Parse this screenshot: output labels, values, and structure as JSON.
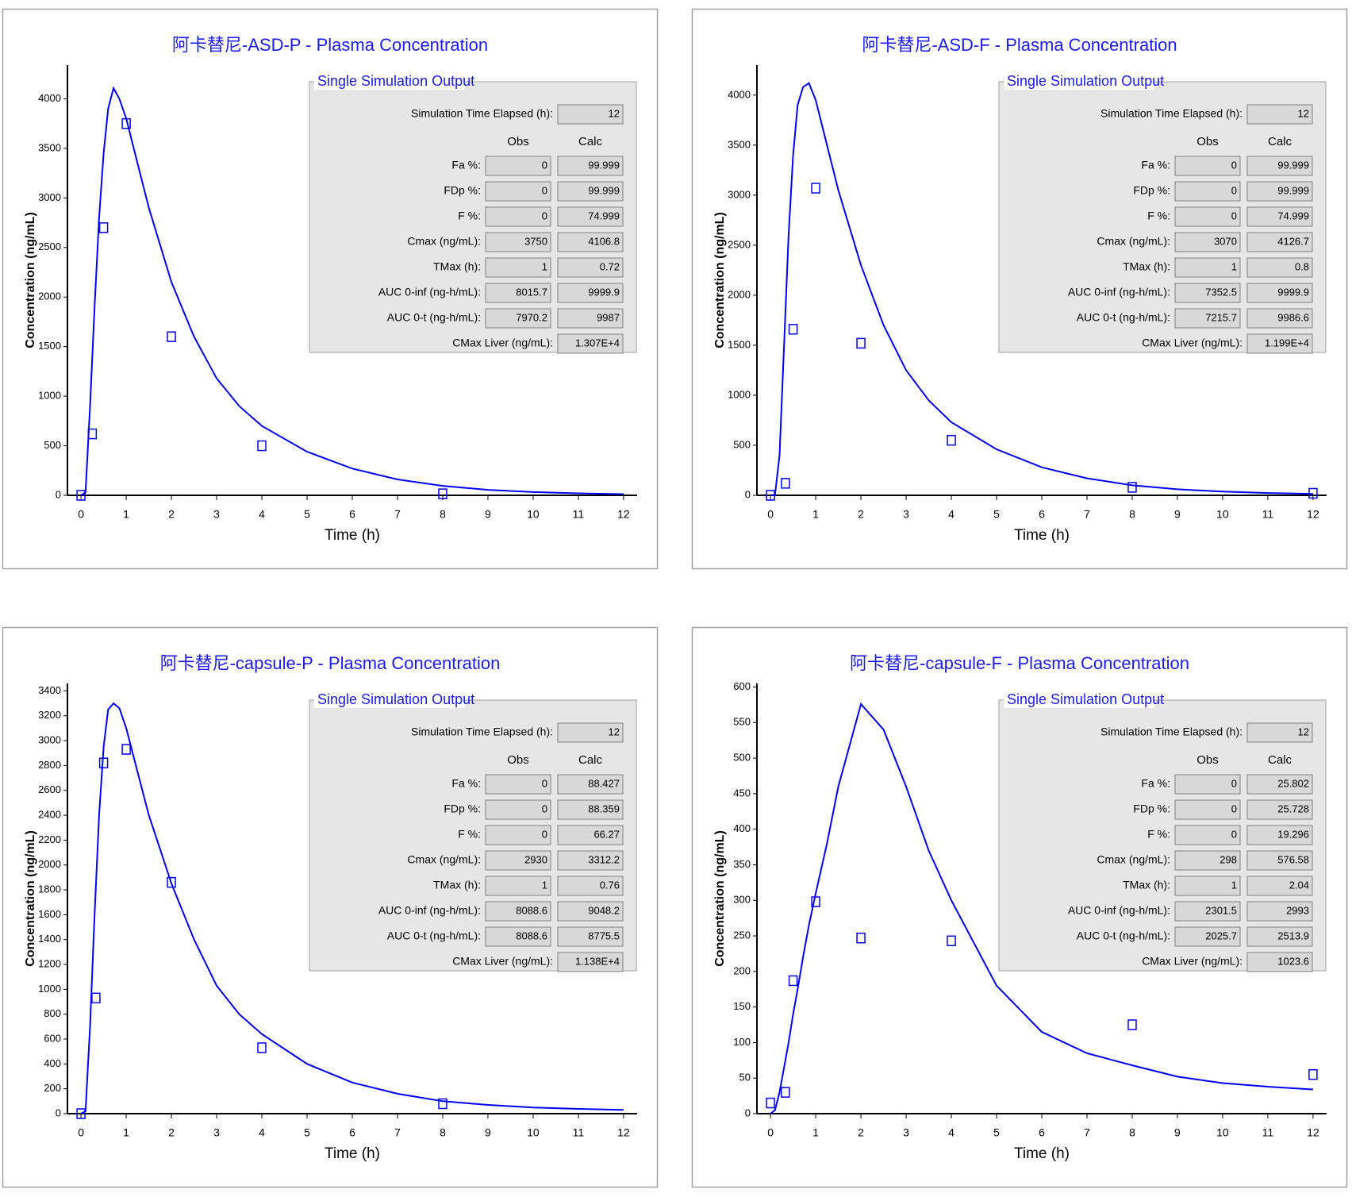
{
  "chart_data": [
    {
      "type": "line",
      "title": "阿卡替尼-ASD-P - Plasma Concentration",
      "x_label": "Time (h)",
      "y_label": "Concentration (ng/mL)",
      "color": "#0000ff",
      "xlim": [
        -0.3,
        12.3
      ],
      "xticks": [
        0,
        1,
        2,
        3,
        4,
        5,
        6,
        7,
        8,
        9,
        10,
        11,
        12
      ],
      "ylim": [
        0,
        4340
      ],
      "yticks": [
        0,
        500,
        1000,
        1500,
        2000,
        2500,
        3000,
        3500,
        4000
      ],
      "curve": {
        "x": [
          0,
          0.1,
          0.2,
          0.3,
          0.4,
          0.5,
          0.6,
          0.72,
          0.85,
          1,
          1.25,
          1.5,
          2,
          2.5,
          3,
          3.5,
          4,
          5,
          6,
          7,
          8,
          9,
          10,
          11,
          12
        ],
        "values": [
          0,
          30,
          900,
          1900,
          2800,
          3450,
          3900,
          4107,
          4000,
          3800,
          3350,
          2900,
          2150,
          1600,
          1180,
          900,
          700,
          440,
          270,
          160,
          95,
          55,
          33,
          20,
          12
        ]
      },
      "observed": {
        "x": [
          0,
          0.25,
          0.5,
          1,
          2,
          4,
          8
        ],
        "values": [
          0,
          620,
          2700,
          3750,
          1600,
          500,
          15
        ]
      },
      "output": {
        "title": "Single Simulation Output",
        "time_label": "Simulation Time Elapsed (h):",
        "time_value": "12",
        "columns": [
          "Obs",
          "Calc"
        ],
        "rows": [
          {
            "label": "Fa %:",
            "obs": "0",
            "calc": "99.999"
          },
          {
            "label": "FDp %:",
            "obs": "0",
            "calc": "99.999"
          },
          {
            "label": "F %:",
            "obs": "0",
            "calc": "74.999"
          },
          {
            "label": "Cmax (ng/mL):",
            "obs": "3750",
            "calc": "4106.8"
          },
          {
            "label": "TMax (h):",
            "obs": "1",
            "calc": "0.72"
          },
          {
            "label": "AUC 0-inf (ng-h/mL):",
            "obs": "8015.7",
            "calc": "9999.9"
          },
          {
            "label": "AUC 0-t (ng-h/mL):",
            "obs": "7970.2",
            "calc": "9987"
          }
        ],
        "liver": {
          "label": "CMax Liver (ng/mL):",
          "calc": "1.307E+4"
        }
      }
    },
    {
      "type": "line",
      "title": "阿卡替尼-ASD-F - Plasma Concentration",
      "x_label": "Time (h)",
      "y_label": "Concentration (ng/mL)",
      "color": "#0000ff",
      "xlim": [
        -0.3,
        12.3
      ],
      "xticks": [
        0,
        1,
        2,
        3,
        4,
        5,
        6,
        7,
        8,
        9,
        10,
        11,
        12
      ],
      "ylim": [
        0,
        4300
      ],
      "yticks": [
        0,
        500,
        1000,
        1500,
        2000,
        2500,
        3000,
        3500,
        4000
      ],
      "curve": {
        "x": [
          0,
          0.1,
          0.2,
          0.3,
          0.4,
          0.5,
          0.6,
          0.72,
          0.85,
          1,
          1.25,
          1.5,
          2,
          2.5,
          3,
          3.5,
          4,
          5,
          6,
          7,
          8,
          9,
          10,
          11,
          12
        ],
        "values": [
          0,
          5,
          400,
          1500,
          2600,
          3400,
          3900,
          4080,
          4120,
          3950,
          3500,
          3050,
          2300,
          1700,
          1250,
          950,
          730,
          460,
          280,
          170,
          100,
          60,
          37,
          23,
          14
        ]
      },
      "observed": {
        "x": [
          0,
          0.33,
          0.5,
          1,
          2,
          4,
          8,
          12
        ],
        "values": [
          0,
          120,
          1660,
          3070,
          1520,
          550,
          80,
          20
        ]
      },
      "output": {
        "title": "Single Simulation Output",
        "time_label": "Simulation Time Elapsed (h):",
        "time_value": "12",
        "columns": [
          "Obs",
          "Calc"
        ],
        "rows": [
          {
            "label": "Fa %:",
            "obs": "0",
            "calc": "99.999"
          },
          {
            "label": "FDp %:",
            "obs": "0",
            "calc": "99.999"
          },
          {
            "label": "F %:",
            "obs": "0",
            "calc": "74.999"
          },
          {
            "label": "Cmax (ng/mL):",
            "obs": "3070",
            "calc": "4126.7"
          },
          {
            "label": "TMax (h):",
            "obs": "1",
            "calc": "0.8"
          },
          {
            "label": "AUC 0-inf (ng-h/mL):",
            "obs": "7352.5",
            "calc": "9999.9"
          },
          {
            "label": "AUC 0-t (ng-h/mL):",
            "obs": "7215.7",
            "calc": "9986.6"
          }
        ],
        "liver": {
          "label": "CMax Liver (ng/mL):",
          "calc": "1.199E+4"
        }
      }
    },
    {
      "type": "line",
      "title": "阿卡替尼-capsule-P - Plasma Concentration",
      "x_label": "Time (h)",
      "y_label": "Concentration (ng/mL)",
      "color": "#0000ff",
      "xlim": [
        -0.3,
        12.3
      ],
      "xticks": [
        0,
        1,
        2,
        3,
        4,
        5,
        6,
        7,
        8,
        9,
        10,
        11,
        12
      ],
      "ylim": [
        0,
        3460
      ],
      "yticks": [
        0,
        200,
        400,
        600,
        800,
        1000,
        1200,
        1400,
        1600,
        1800,
        2000,
        2200,
        2400,
        2600,
        2800,
        3000,
        3200,
        3400
      ],
      "curve": {
        "x": [
          0,
          0.1,
          0.2,
          0.3,
          0.4,
          0.5,
          0.6,
          0.72,
          0.85,
          1,
          1.25,
          1.5,
          2,
          2.5,
          3,
          3.5,
          4,
          5,
          6,
          7,
          8,
          9,
          10,
          11,
          12
        ],
        "values": [
          0,
          20,
          700,
          1600,
          2400,
          2950,
          3250,
          3300,
          3260,
          3100,
          2750,
          2400,
          1850,
          1400,
          1030,
          800,
          640,
          400,
          250,
          160,
          100,
          70,
          50,
          38,
          30
        ]
      },
      "observed": {
        "x": [
          0,
          0.33,
          0.5,
          1,
          2,
          4,
          8
        ],
        "values": [
          0,
          930,
          2820,
          2930,
          1860,
          530,
          80
        ]
      },
      "output": {
        "title": "Single Simulation Output",
        "time_label": "Simulation Time Elapsed (h):",
        "time_value": "12",
        "columns": [
          "Obs",
          "Calc"
        ],
        "rows": [
          {
            "label": "Fa %:",
            "obs": "0",
            "calc": "88.427"
          },
          {
            "label": "FDp %:",
            "obs": "0",
            "calc": "88.359"
          },
          {
            "label": "F %:",
            "obs": "0",
            "calc": "66.27"
          },
          {
            "label": "Cmax (ng/mL):",
            "obs": "2930",
            "calc": "3312.2"
          },
          {
            "label": "TMax (h):",
            "obs": "1",
            "calc": "0.76"
          },
          {
            "label": "AUC 0-inf (ng-h/mL):",
            "obs": "8088.6",
            "calc": "9048.2"
          },
          {
            "label": "AUC 0-t (ng-h/mL):",
            "obs": "8088.6",
            "calc": "8775.5"
          }
        ],
        "liver": {
          "label": "CMax Liver (ng/mL):",
          "calc": "1.138E+4"
        }
      }
    },
    {
      "type": "line",
      "title": "阿卡替尼-capsule-F - Plasma Concentration",
      "x_label": "Time (h)",
      "y_label": "Concentration (ng/mL)",
      "color": "#0000ff",
      "xlim": [
        -0.3,
        12.3
      ],
      "xticks": [
        0,
        1,
        2,
        3,
        4,
        5,
        6,
        7,
        8,
        9,
        10,
        11,
        12
      ],
      "ylim": [
        0,
        605
      ],
      "yticks": [
        0,
        50,
        100,
        150,
        200,
        250,
        300,
        350,
        400,
        450,
        500,
        550,
        600
      ],
      "curve": {
        "x": [
          0,
          0.1,
          0.2,
          0.3,
          0.4,
          0.5,
          0.6,
          0.72,
          0.85,
          1,
          1.25,
          1.5,
          2,
          2.5,
          3,
          3.5,
          4,
          5,
          6,
          7,
          8,
          9,
          10,
          11,
          12
        ],
        "values": [
          0,
          5,
          30,
          65,
          100,
          140,
          175,
          220,
          265,
          310,
          380,
          460,
          576,
          540,
          460,
          370,
          300,
          180,
          115,
          85,
          68,
          52,
          43,
          38,
          34
        ]
      },
      "observed": {
        "x": [
          0,
          0.33,
          0.5,
          1,
          2,
          4,
          8,
          12
        ],
        "values": [
          15,
          30,
          187,
          298,
          247,
          243,
          125,
          55
        ]
      },
      "output": {
        "title": "Single Simulation Output",
        "time_label": "Simulation Time Elapsed (h):",
        "time_value": "12",
        "columns": [
          "Obs",
          "Calc"
        ],
        "rows": [
          {
            "label": "Fa %:",
            "obs": "0",
            "calc": "25.802"
          },
          {
            "label": "FDp %:",
            "obs": "0",
            "calc": "25.728"
          },
          {
            "label": "F %:",
            "obs": "0",
            "calc": "19.296"
          },
          {
            "label": "Cmax (ng/mL):",
            "obs": "298",
            "calc": "576.58"
          },
          {
            "label": "TMax (h):",
            "obs": "1",
            "calc": "2.04"
          },
          {
            "label": "AUC 0-inf (ng-h/mL):",
            "obs": "2301.5",
            "calc": "2993"
          },
          {
            "label": "AUC 0-t (ng-h/mL):",
            "obs": "2025.7",
            "calc": "2513.9"
          }
        ],
        "liver": {
          "label": "CMax Liver (ng/mL):",
          "calc": "1023.6"
        }
      }
    }
  ]
}
